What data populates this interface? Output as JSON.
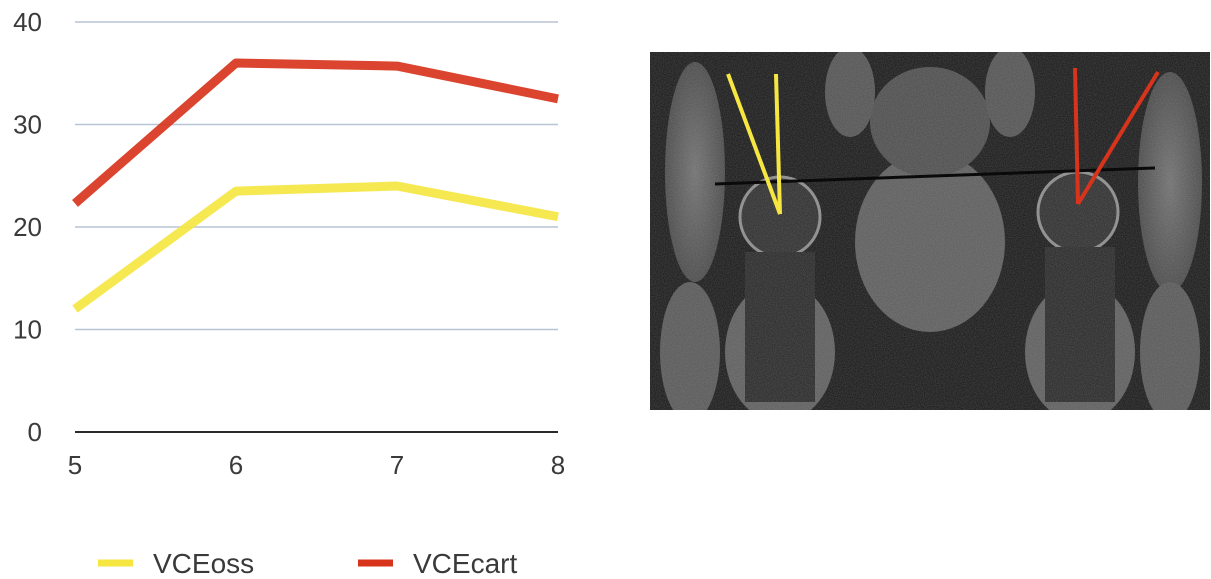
{
  "chart_data": {
    "type": "line",
    "x": [
      5,
      6,
      7,
      8
    ],
    "xlim": [
      5,
      8
    ],
    "ylim": [
      0,
      40
    ],
    "yticks": [
      0,
      10,
      20,
      30,
      40
    ],
    "xticks": [
      5,
      6,
      7,
      8
    ],
    "grid": true,
    "legend_position": "bottom",
    "series": [
      {
        "name": "VCEoss",
        "color": "#f5e642",
        "values": [
          12,
          23.5,
          24,
          21
        ]
      },
      {
        "name": "VCEcart",
        "color": "#d8341c",
        "values": [
          22.3,
          36,
          35.7,
          32.5
        ]
      }
    ]
  },
  "image": {
    "kind": "mri-coronal-hip",
    "left_overlay_color": "#f5e642",
    "right_overlay_color": "#d8341c"
  }
}
